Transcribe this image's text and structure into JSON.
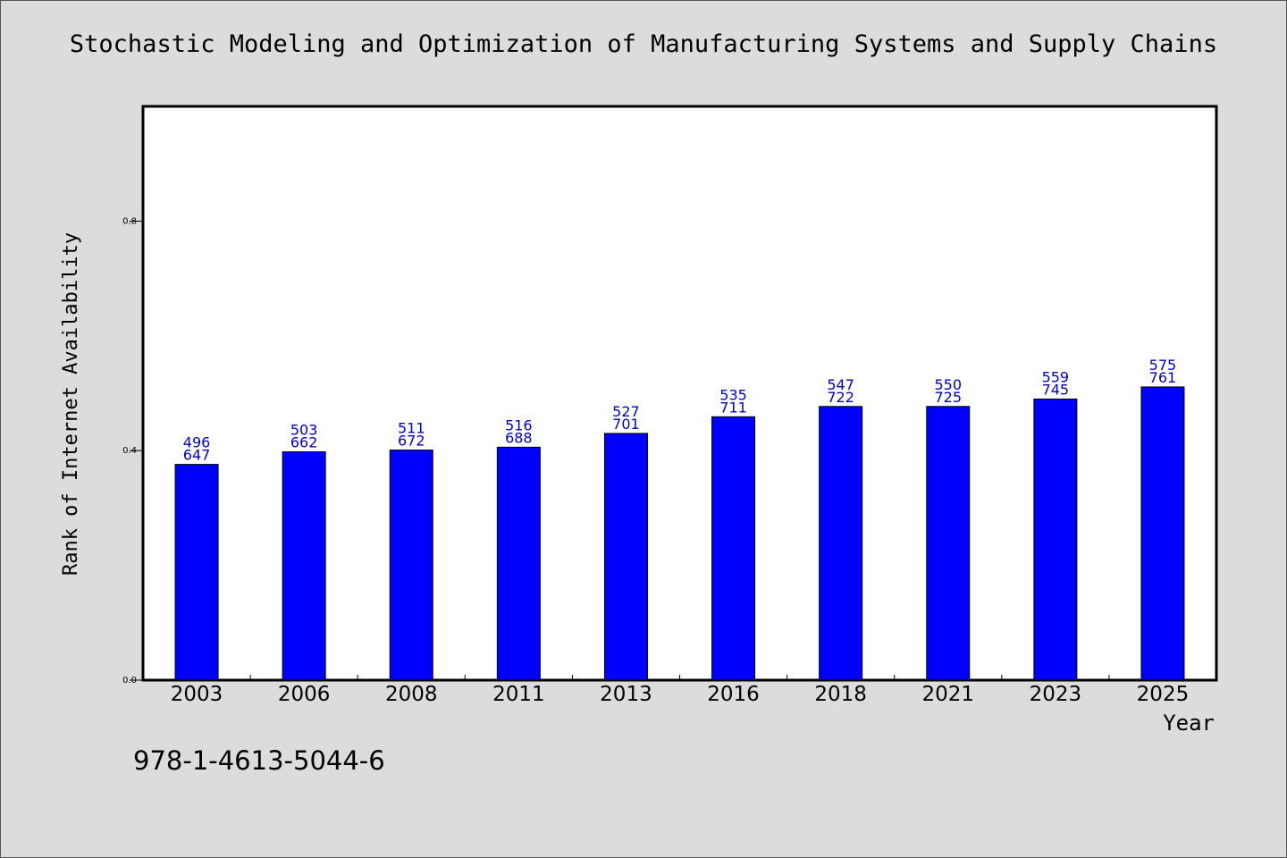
{
  "chart_data": {
    "type": "bar",
    "title": "Stochastic Modeling and Optimization of Manufacturing Systems and Supply Chains",
    "xlabel": "Year",
    "ylabel": "Rank of Internet Availability",
    "categories": [
      "2003",
      "2006",
      "2008",
      "2011",
      "2013",
      "2016",
      "2018",
      "2021",
      "2023",
      "2025"
    ],
    "values": [
      0.376,
      0.398,
      0.401,
      0.406,
      0.43,
      0.459,
      0.477,
      0.477,
      0.49,
      0.511
    ],
    "data_labels_top": [
      "496",
      "503",
      "511",
      "516",
      "527",
      "535",
      "547",
      "550",
      "559",
      "575"
    ],
    "data_labels_bottom": [
      "647",
      "662",
      "672",
      "688",
      "701",
      "711",
      "722",
      "725",
      "745",
      "761"
    ],
    "ylim": [
      0,
      1.0
    ],
    "yticks": [
      0.0,
      0.4,
      0.8
    ],
    "ytick_labels": [
      "0.0",
      "0.4",
      "0.8"
    ],
    "grid": false,
    "legend": "none",
    "colors": {
      "bar": "#0000ff",
      "label": "#0000cc",
      "axis": "#000000",
      "background": "#dcdcdc",
      "plot_background": "#ffffff"
    }
  },
  "footer": {
    "isbn": "978-1-4613-5044-6"
  }
}
